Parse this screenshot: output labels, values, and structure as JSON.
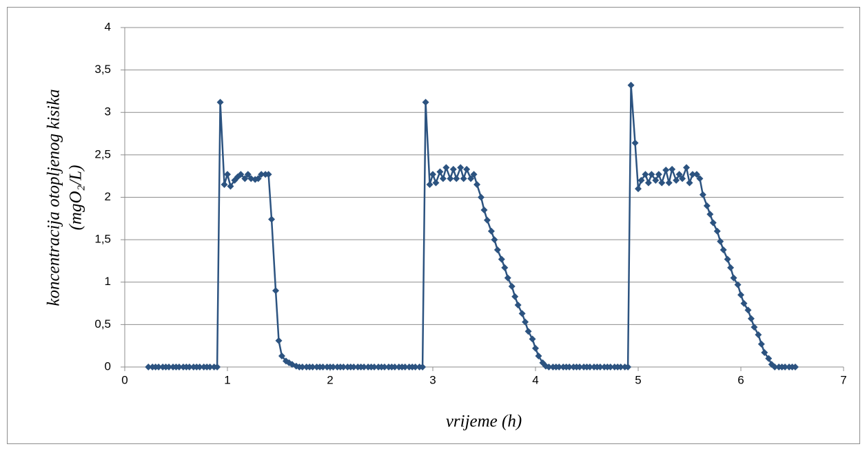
{
  "chart_data": {
    "type": "line",
    "x_label": "vrijeme (h)",
    "y_label": [
      "koncentracija otopljenog kisika",
      "(mgO₂/L)"
    ],
    "x": [
      0.23,
      0.27,
      0.3,
      0.33,
      0.37,
      0.4,
      0.43,
      0.47,
      0.5,
      0.53,
      0.57,
      0.6,
      0.63,
      0.67,
      0.7,
      0.73,
      0.77,
      0.8,
      0.83,
      0.87,
      0.9,
      0.93,
      0.97,
      1,
      1.03,
      1.07,
      1.1,
      1.13,
      1.17,
      1.2,
      1.23,
      1.27,
      1.3,
      1.33,
      1.37,
      1.4,
      1.43,
      1.47,
      1.5,
      1.53,
      1.57,
      1.6,
      1.63,
      1.67,
      1.7,
      1.73,
      1.77,
      1.8,
      1.83,
      1.87,
      1.9,
      1.93,
      1.97,
      2,
      2.03,
      2.07,
      2.1,
      2.13,
      2.17,
      2.2,
      2.23,
      2.27,
      2.3,
      2.33,
      2.37,
      2.4,
      2.43,
      2.47,
      2.5,
      2.53,
      2.57,
      2.6,
      2.63,
      2.67,
      2.7,
      2.73,
      2.77,
      2.8,
      2.83,
      2.87,
      2.9,
      2.93,
      2.97,
      3,
      3.03,
      3.07,
      3.1,
      3.13,
      3.17,
      3.2,
      3.23,
      3.27,
      3.3,
      3.33,
      3.37,
      3.4,
      3.43,
      3.47,
      3.5,
      3.53,
      3.57,
      3.6,
      3.63,
      3.67,
      3.7,
      3.73,
      3.77,
      3.8,
      3.83,
      3.87,
      3.9,
      3.93,
      3.97,
      4,
      4.03,
      4.07,
      4.1,
      4.13,
      4.17,
      4.2,
      4.23,
      4.27,
      4.3,
      4.33,
      4.37,
      4.4,
      4.43,
      4.47,
      4.5,
      4.53,
      4.57,
      4.6,
      4.63,
      4.67,
      4.7,
      4.73,
      4.77,
      4.8,
      4.83,
      4.87,
      4.9,
      4.93,
      4.97,
      5,
      5.03,
      5.07,
      5.1,
      5.13,
      5.17,
      5.2,
      5.23,
      5.27,
      5.3,
      5.33,
      5.37,
      5.4,
      5.43,
      5.47,
      5.5,
      5.53,
      5.57,
      5.6,
      5.63,
      5.67,
      5.7,
      5.73,
      5.77,
      5.8,
      5.83,
      5.87,
      5.9,
      5.93,
      5.97,
      6,
      6.03,
      6.07,
      6.1,
      6.13,
      6.17,
      6.2,
      6.23,
      6.27,
      6.3,
      6.33,
      6.37,
      6.4,
      6.43,
      6.47,
      6.5,
      6.53
    ],
    "series": [
      {
        "color": "#2c5380",
        "values": [
          0,
          0,
          0,
          0,
          0,
          0,
          0,
          0,
          0,
          0,
          0,
          0,
          0,
          0,
          0,
          0,
          0,
          0,
          0,
          0,
          0,
          3.12,
          2.15,
          2.27,
          2.13,
          2.2,
          2.24,
          2.27,
          2.22,
          2.27,
          2.22,
          2.21,
          2.22,
          2.27,
          2.27,
          2.27,
          1.74,
          0.9,
          0.31,
          0.13,
          0.07,
          0.05,
          0.03,
          0.01,
          0,
          0,
          0,
          0,
          0,
          0,
          0,
          0,
          0,
          0,
          0,
          0,
          0,
          0,
          0,
          0,
          0,
          0,
          0,
          0,
          0,
          0,
          0,
          0,
          0,
          0,
          0,
          0,
          0,
          0,
          0,
          0,
          0,
          0,
          0,
          0,
          0,
          3.12,
          2.15,
          2.27,
          2.17,
          2.3,
          2.22,
          2.35,
          2.22,
          2.33,
          2.22,
          2.35,
          2.22,
          2.33,
          2.22,
          2.27,
          2.15,
          2.0,
          1.85,
          1.73,
          1.6,
          1.5,
          1.38,
          1.27,
          1.17,
          1.05,
          0.95,
          0.83,
          0.73,
          0.63,
          0.53,
          0.42,
          0.33,
          0.22,
          0.13,
          0.05,
          0.01,
          0,
          0,
          0,
          0,
          0,
          0,
          0,
          0,
          0,
          0,
          0,
          0,
          0,
          0,
          0,
          0,
          0,
          0,
          0,
          0,
          0,
          0,
          0,
          0,
          3.32,
          2.64,
          2.1,
          2.2,
          2.27,
          2.17,
          2.27,
          2.2,
          2.27,
          2.17,
          2.32,
          2.17,
          2.33,
          2.2,
          2.27,
          2.22,
          2.35,
          2.17,
          2.27,
          2.27,
          2.22,
          2.03,
          1.9,
          1.8,
          1.7,
          1.6,
          1.48,
          1.38,
          1.27,
          1.17,
          1.05,
          0.97,
          0.85,
          0.75,
          0.67,
          0.57,
          0.47,
          0.38,
          0.27,
          0.17,
          0.1,
          0.03,
          0,
          0,
          0,
          0,
          0,
          0,
          0
        ]
      }
    ],
    "xlim": [
      0,
      7
    ],
    "xticks": [
      0,
      1,
      2,
      3,
      4,
      5,
      6,
      7
    ],
    "ylim": [
      0,
      4
    ],
    "yticks": [
      0,
      {
        "value": 0.5,
        "label": "0,5"
      },
      1,
      {
        "value": 1.5,
        "label": "1,5"
      },
      2,
      {
        "value": 2.5,
        "label": "2,5"
      },
      3,
      {
        "value": 3.5,
        "label": "3,5"
      },
      4
    ],
    "grid": true
  }
}
